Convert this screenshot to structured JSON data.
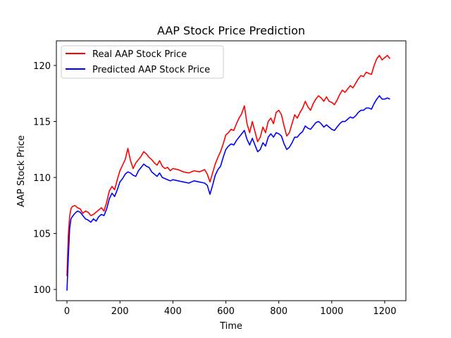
{
  "chart_data": {
    "type": "line",
    "title": "AAP Stock Price Prediction",
    "xlabel": "Time",
    "ylabel": "AAP Stock Price",
    "xlim": [
      -40,
      1280
    ],
    "ylim": [
      99,
      122.2
    ],
    "xticks": [
      0,
      200,
      400,
      600,
      800,
      1000,
      1200
    ],
    "yticks": [
      100,
      105,
      110,
      115,
      120
    ],
    "legend_position": "upper-left",
    "series": [
      {
        "name": "Real AAP Stock Price",
        "color": "#ff0000",
        "x": [
          0,
          5,
          10,
          15,
          20,
          30,
          40,
          50,
          60,
          70,
          80,
          90,
          100,
          110,
          120,
          130,
          140,
          150,
          160,
          170,
          180,
          190,
          200,
          210,
          220,
          230,
          240,
          250,
          260,
          270,
          280,
          290,
          300,
          310,
          320,
          330,
          340,
          350,
          360,
          370,
          380,
          390,
          400,
          420,
          440,
          460,
          480,
          500,
          520,
          530,
          540,
          550,
          560,
          570,
          580,
          590,
          600,
          610,
          620,
          630,
          640,
          650,
          660,
          670,
          680,
          690,
          700,
          710,
          720,
          730,
          740,
          750,
          760,
          770,
          780,
          790,
          800,
          810,
          820,
          830,
          840,
          850,
          860,
          870,
          880,
          890,
          900,
          910,
          920,
          930,
          940,
          950,
          960,
          970,
          980,
          990,
          1000,
          1010,
          1020,
          1030,
          1040,
          1050,
          1060,
          1070,
          1080,
          1090,
          1100,
          1110,
          1120,
          1130,
          1140,
          1150,
          1160,
          1170,
          1180,
          1190,
          1200,
          1210,
          1220
        ],
        "y": [
          101.2,
          104.8,
          106.5,
          107.2,
          107.4,
          107.5,
          107.3,
          107.2,
          106.8,
          107.0,
          106.9,
          106.6,
          106.7,
          106.9,
          107.1,
          107.3,
          107.0,
          107.8,
          108.8,
          109.2,
          108.9,
          109.8,
          110.6,
          111.1,
          111.6,
          112.6,
          111.5,
          110.8,
          111.3,
          111.6,
          111.9,
          112.3,
          112.1,
          111.8,
          111.6,
          111.3,
          111.1,
          111.5,
          111.0,
          110.8,
          110.9,
          110.6,
          110.8,
          110.7,
          110.5,
          110.4,
          110.6,
          110.5,
          110.7,
          110.3,
          109.6,
          110.4,
          111.2,
          111.8,
          112.3,
          113.0,
          113.8,
          114.0,
          114.3,
          114.2,
          114.8,
          115.3,
          115.7,
          116.4,
          114.8,
          114.0,
          115.0,
          114.1,
          113.2,
          113.6,
          114.5,
          114.0,
          115.0,
          115.3,
          114.8,
          115.8,
          116.0,
          115.6,
          114.6,
          113.7,
          114.0,
          114.8,
          115.6,
          115.3,
          115.8,
          116.2,
          116.8,
          116.3,
          116.0,
          116.6,
          117.0,
          117.3,
          117.1,
          116.8,
          117.2,
          116.8,
          116.7,
          116.5,
          116.9,
          117.4,
          117.8,
          117.6,
          117.9,
          118.2,
          118.0,
          118.4,
          118.8,
          119.1,
          119.0,
          119.4,
          119.3,
          119.2,
          120.0,
          120.6,
          120.9,
          120.5,
          120.7,
          120.9,
          120.6
        ]
      },
      {
        "name": "Predicted AAP Stock Price",
        "color": "#0000ff",
        "x": [
          0,
          5,
          10,
          15,
          20,
          30,
          40,
          50,
          60,
          70,
          80,
          90,
          100,
          110,
          120,
          130,
          140,
          150,
          160,
          170,
          180,
          190,
          200,
          210,
          220,
          230,
          240,
          250,
          260,
          270,
          280,
          290,
          300,
          310,
          320,
          330,
          340,
          350,
          360,
          370,
          380,
          390,
          400,
          420,
          440,
          460,
          480,
          500,
          520,
          530,
          540,
          550,
          560,
          570,
          580,
          590,
          600,
          610,
          620,
          630,
          640,
          650,
          660,
          670,
          680,
          690,
          700,
          710,
          720,
          730,
          740,
          750,
          760,
          770,
          780,
          790,
          800,
          810,
          820,
          830,
          840,
          850,
          860,
          870,
          880,
          890,
          900,
          910,
          920,
          930,
          940,
          950,
          960,
          970,
          980,
          990,
          1000,
          1010,
          1020,
          1030,
          1040,
          1050,
          1060,
          1070,
          1080,
          1090,
          1100,
          1110,
          1120,
          1130,
          1140,
          1150,
          1160,
          1170,
          1180,
          1190,
          1200,
          1210,
          1220
        ],
        "y": [
          99.9,
          102.8,
          105.4,
          106.3,
          106.5,
          106.8,
          107.0,
          106.9,
          106.6,
          106.3,
          106.2,
          106.0,
          106.3,
          106.1,
          106.5,
          106.7,
          106.6,
          107.2,
          108.1,
          108.6,
          108.3,
          108.9,
          109.6,
          109.9,
          110.3,
          110.5,
          110.4,
          110.2,
          110.1,
          110.6,
          110.9,
          111.2,
          111.0,
          110.9,
          110.5,
          110.3,
          110.1,
          110.4,
          110.0,
          109.9,
          109.8,
          109.7,
          109.8,
          109.7,
          109.6,
          109.5,
          109.7,
          109.6,
          109.5,
          109.3,
          108.5,
          109.3,
          110.2,
          110.7,
          111.0,
          111.8,
          112.5,
          112.8,
          113.0,
          112.9,
          113.3,
          113.6,
          113.9,
          114.2,
          113.4,
          112.9,
          113.5,
          112.9,
          112.3,
          112.5,
          113.1,
          112.8,
          113.6,
          113.9,
          113.6,
          114.0,
          113.9,
          113.7,
          113.0,
          112.5,
          112.7,
          113.1,
          113.6,
          113.6,
          113.9,
          114.1,
          114.6,
          114.4,
          114.3,
          114.6,
          114.9,
          115.0,
          114.8,
          114.5,
          114.7,
          114.5,
          114.3,
          114.2,
          114.5,
          114.8,
          115.0,
          115.0,
          115.2,
          115.4,
          115.3,
          115.5,
          115.8,
          116.0,
          116.0,
          116.2,
          116.2,
          116.1,
          116.6,
          117.0,
          117.3,
          117.0,
          117.0,
          117.1,
          117.0
        ]
      }
    ]
  }
}
